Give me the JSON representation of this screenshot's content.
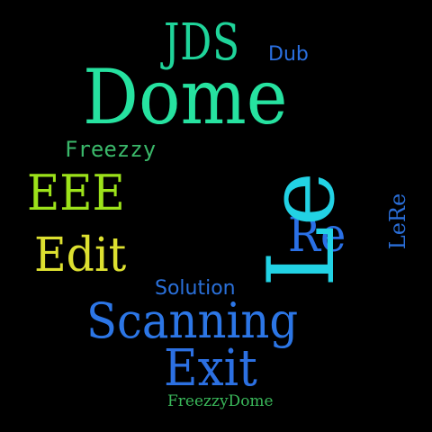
{
  "background": "#000000",
  "words": [
    {
      "text": "JDS",
      "color": "#1fd49a"
    },
    {
      "text": "Dub",
      "color": "#2a6fe0"
    },
    {
      "text": "Dome",
      "color": "#26e2a0"
    },
    {
      "text": "Freezzy",
      "color": "#3ab86a"
    },
    {
      "text": "EEE",
      "color": "#9ce21a"
    },
    {
      "text": "Edit",
      "color": "#dde030"
    },
    {
      "text": "Solution",
      "color": "#2a70da"
    },
    {
      "text": "Scanning",
      "color": "#2c76e6"
    },
    {
      "text": "Exit",
      "color": "#2c70e2"
    },
    {
      "text": "FreezzyDome",
      "color": "#3ab85a"
    },
    {
      "text": "Re",
      "color": "#2a70e6"
    },
    {
      "text": "Le",
      "color": "#22d2e4"
    },
    {
      "text": "LeRe",
      "color": "#2a6ed8"
    }
  ]
}
